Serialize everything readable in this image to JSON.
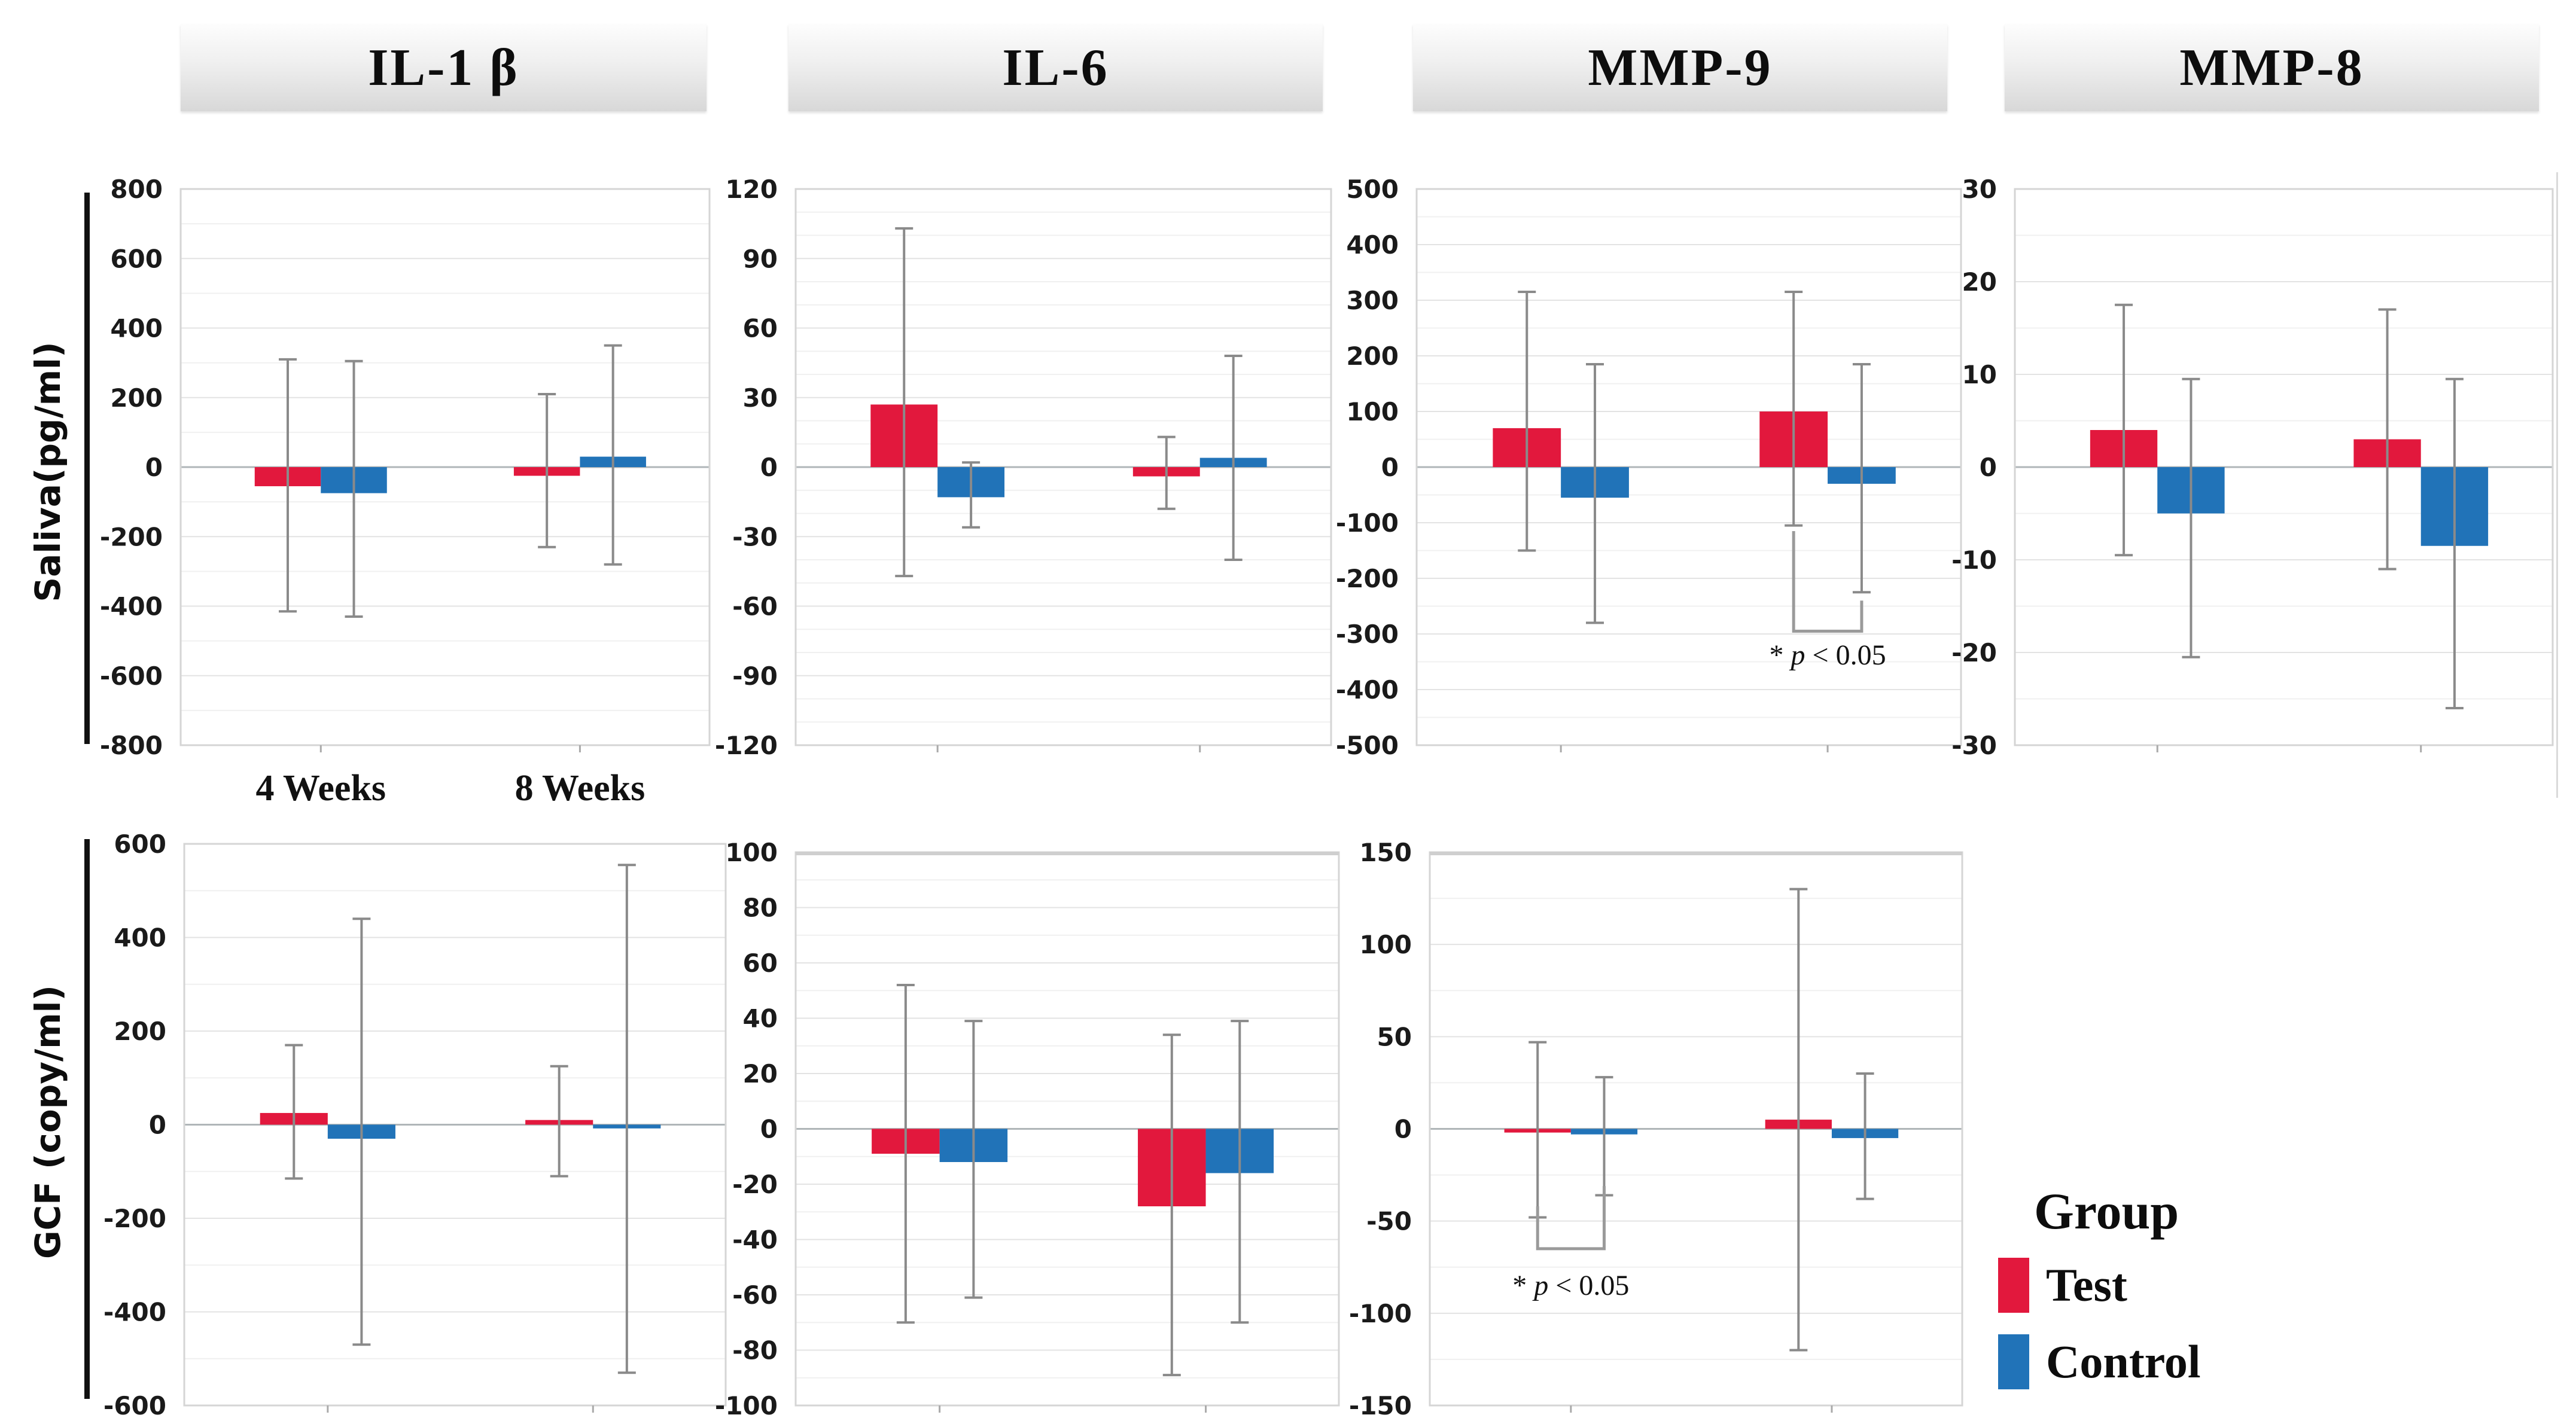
{
  "figure": {
    "columns": [
      "IL-1 β",
      "IL-6",
      "MMP-9",
      "MMP-8"
    ],
    "row_labels": [
      "Saliva(pg/ml)",
      "GCF (copy/ml)"
    ],
    "x_categories": [
      "4 Weeks",
      "8 Weeks"
    ],
    "legend": {
      "title": "Group",
      "items": [
        {
          "label": "Test",
          "color": "#e2183d"
        },
        {
          "label": "Control",
          "color": "#2173b8"
        }
      ]
    }
  },
  "colors": {
    "test": "#e2183d",
    "control": "#2173b8",
    "error_bar": "#8a8a8a",
    "grid_minor": "#f0f0f0",
    "grid_major": "#e3e3e3",
    "zero_line": "#b0b6b8",
    "plot_border": "#d5d5d5",
    "bracket": "#9a9a9a",
    "tick_text": "#1a1a1a",
    "serif_text": "#111111"
  },
  "chart_data": [
    {
      "id": "saliva-il1b",
      "type": "bar",
      "row": "Saliva(pg/ml)",
      "column": "IL-1 β",
      "categories": [
        "4 Weeks",
        "8 Weeks"
      ],
      "show_category_labels": true,
      "ylim": [
        -800,
        800
      ],
      "ytick_step": 200,
      "minor_step": 100,
      "grid": true,
      "series": [
        {
          "name": "Test",
          "values": [
            -55,
            -25
          ],
          "err_high": [
            310,
            210
          ],
          "err_low": [
            -415,
            -230
          ]
        },
        {
          "name": "Control",
          "values": [
            -75,
            30
          ],
          "err_high": [
            305,
            350
          ],
          "err_low": [
            -430,
            -280
          ]
        }
      ],
      "significance": null
    },
    {
      "id": "saliva-il6",
      "type": "bar",
      "row": "Saliva(pg/ml)",
      "column": "IL-6",
      "categories": [
        "4 Weeks",
        "8 Weeks"
      ],
      "show_category_labels": false,
      "ylim": [
        -120,
        120
      ],
      "ytick_step": 30,
      "minor_step": 10,
      "grid": true,
      "series": [
        {
          "name": "Test",
          "values": [
            27,
            -4
          ],
          "err_high": [
            103,
            13
          ],
          "err_low": [
            -47,
            -18
          ]
        },
        {
          "name": "Control",
          "values": [
            -13,
            4
          ],
          "err_high": [
            2,
            48
          ],
          "err_low": [
            -26,
            -40
          ]
        }
      ],
      "significance": null
    },
    {
      "id": "saliva-mmp9",
      "type": "bar",
      "row": "Saliva(pg/ml)",
      "column": "MMP-9",
      "categories": [
        "4 Weeks",
        "8 Weeks"
      ],
      "show_category_labels": false,
      "ylim": [
        -500,
        500
      ],
      "ytick_step": 100,
      "minor_step": 50,
      "grid": true,
      "series": [
        {
          "name": "Test",
          "values": [
            70,
            100
          ],
          "err_high": [
            315,
            315
          ],
          "err_low": [
            -150,
            -105
          ]
        },
        {
          "name": "Control",
          "values": [
            -55,
            -30
          ],
          "err_high": [
            185,
            185
          ],
          "err_low": [
            -280,
            -225
          ]
        }
      ],
      "significance": {
        "label": "* p < 0.05",
        "category_index": 1,
        "bracket": {
          "left_v": [
            -115,
            -295
          ],
          "right_v": [
            -240,
            -295
          ]
        },
        "label_v": -355
      }
    },
    {
      "id": "saliva-mmp8",
      "type": "bar",
      "row": "Saliva(pg/ml)",
      "column": "MMP-8",
      "categories": [
        "4 Weeks",
        "8 Weeks"
      ],
      "show_category_labels": false,
      "ylim": [
        -30,
        30
      ],
      "ytick_step": 10,
      "minor_step": 5,
      "grid": true,
      "series": [
        {
          "name": "Test",
          "values": [
            4,
            3
          ],
          "err_high": [
            17.5,
            17
          ],
          "err_low": [
            -9.5,
            -11
          ]
        },
        {
          "name": "Control",
          "values": [
            -5,
            -8.5
          ],
          "err_high": [
            9.5,
            9.5
          ],
          "err_low": [
            -20.5,
            -26
          ]
        }
      ],
      "significance": null
    },
    {
      "id": "gcf-il1b",
      "type": "bar",
      "row": "GCF (copy/ml)",
      "column": "IL-1 β",
      "categories": [
        "4 Weeks",
        "8 Weeks"
      ],
      "show_category_labels": false,
      "ylim": [
        -600,
        600
      ],
      "ytick_step": 200,
      "minor_step": 100,
      "grid": true,
      "series": [
        {
          "name": "Test",
          "values": [
            25,
            10
          ],
          "err_high": [
            170,
            125
          ],
          "err_low": [
            -115,
            -110
          ]
        },
        {
          "name": "Control",
          "values": [
            -30,
            -8
          ],
          "err_high": [
            440,
            555
          ],
          "err_low": [
            -470,
            -530
          ]
        }
      ],
      "significance": null
    },
    {
      "id": "gcf-il6",
      "type": "bar",
      "row": "GCF (copy/ml)",
      "column": "IL-6",
      "categories": [
        "4 Weeks",
        "8 Weeks"
      ],
      "show_category_labels": false,
      "ylim": [
        -100,
        100
      ],
      "ytick_step": 20,
      "minor_step": 10,
      "grid": true,
      "series": [
        {
          "name": "Test",
          "values": [
            -9,
            -28
          ],
          "err_high": [
            52,
            34
          ],
          "err_low": [
            -70,
            -89
          ]
        },
        {
          "name": "Control",
          "values": [
            -12,
            -16
          ],
          "err_high": [
            39,
            39
          ],
          "err_low": [
            -61,
            -70
          ]
        }
      ],
      "significance": null
    },
    {
      "id": "gcf-mmp9",
      "type": "bar",
      "row": "GCF (copy/ml)",
      "column": "MMP-9",
      "categories": [
        "4 Weeks",
        "8 Weeks"
      ],
      "show_category_labels": false,
      "ylim": [
        -150,
        150
      ],
      "ytick_step": 50,
      "minor_step": 25,
      "grid": true,
      "series": [
        {
          "name": "Test",
          "values": [
            -2,
            5
          ],
          "err_high": [
            47,
            130
          ],
          "err_low": [
            -48,
            -120
          ]
        },
        {
          "name": "Control",
          "values": [
            -3,
            -5
          ],
          "err_high": [
            28,
            30
          ],
          "err_low": [
            -36,
            -38
          ]
        }
      ],
      "significance": {
        "label": "* p < 0.05",
        "category_index": 0,
        "bracket": {
          "left_v": [
            -42,
            -65
          ],
          "right_v": [
            -31,
            -65
          ]
        },
        "label_v": -90
      }
    }
  ]
}
